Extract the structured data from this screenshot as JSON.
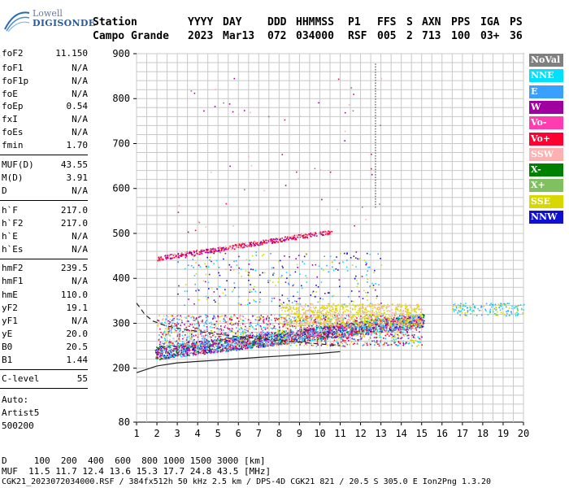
{
  "logo": {
    "line1": "Lowell",
    "line2": "DIGISONDE"
  },
  "header": {
    "labels": [
      "Station",
      "YYYY",
      "DAY",
      "DDD",
      "HHMMSS",
      "P1",
      "FFS",
      "S",
      "AXN",
      "PPS",
      "IGA",
      "PS"
    ],
    "values": [
      "Campo Grande",
      "2023",
      "Mar13",
      "072",
      "034000",
      "RSF",
      "005",
      "2",
      "713",
      "100",
      "03+",
      "36"
    ]
  },
  "params": [
    {
      "k": "foF2",
      "v": "11.150"
    },
    {
      "k": "foF1",
      "v": "N/A"
    },
    {
      "k": "foF1p",
      "v": "N/A"
    },
    {
      "k": "foE",
      "v": "N/A"
    },
    {
      "k": "foEp",
      "v": "0.54"
    },
    {
      "k": "fxI",
      "v": "N/A"
    },
    {
      "k": "foEs",
      "v": "N/A"
    },
    {
      "k": "fmin",
      "v": "1.70"
    },
    {
      "k": "MUF(D)",
      "v": "43.55"
    },
    {
      "k": "M(D)",
      "v": "3.91"
    },
    {
      "k": "D",
      "v": "N/A"
    },
    {
      "k": "h`F",
      "v": "217.0"
    },
    {
      "k": "h`F2",
      "v": "217.0"
    },
    {
      "k": "h`E",
      "v": "N/A"
    },
    {
      "k": "h`Es",
      "v": "N/A"
    },
    {
      "k": "hmF2",
      "v": "239.5"
    },
    {
      "k": "hmF1",
      "v": "N/A"
    },
    {
      "k": "hmE",
      "v": "110.0"
    },
    {
      "k": "yF2",
      "v": "19.1"
    },
    {
      "k": "yF1",
      "v": "N/A"
    },
    {
      "k": "yE",
      "v": "20.0"
    },
    {
      "k": "B0",
      "v": "20.5"
    },
    {
      "k": "B1",
      "v": "1.44"
    },
    {
      "k": "C-level",
      "v": "55"
    }
  ],
  "auto": {
    "line1": "Auto:",
    "line2": "Artist5",
    "line3": "500200"
  },
  "legend": [
    {
      "label": "NoVal",
      "bg": "#808080",
      "fg": "#ffffff"
    },
    {
      "label": "NNE",
      "bg": "#00e0ff",
      "fg": "#ffffff"
    },
    {
      "label": "E",
      "bg": "#3aa0ff",
      "fg": "#ffffff"
    },
    {
      "label": "W",
      "bg": "#a000a0",
      "fg": "#ffffff"
    },
    {
      "label": "Vo-",
      "bg": "#ff3cb0",
      "fg": "#ffffff"
    },
    {
      "label": "Vo+",
      "bg": "#ff0030",
      "fg": "#ffffff"
    },
    {
      "label": "SSW",
      "bg": "#ffb0b0",
      "fg": "#ffffff"
    },
    {
      "label": "X-",
      "bg": "#008000",
      "fg": "#ffffff"
    },
    {
      "label": "X+",
      "bg": "#80c060",
      "fg": "#ffffff"
    },
    {
      "label": "SSE",
      "bg": "#d8d800",
      "fg": "#ffffff"
    },
    {
      "label": "NNW",
      "bg": "#1010d0",
      "fg": "#ffffff"
    }
  ],
  "chart_data": {
    "type": "scatter",
    "xlim": [
      1,
      20
    ],
    "ylim": [
      80,
      900
    ],
    "x_ticks": [
      "1",
      "2",
      "3",
      "4",
      "5",
      "6",
      "7",
      "8",
      "9",
      "10",
      "11",
      "12",
      "13",
      "14",
      "15",
      "16",
      "17",
      "18",
      "19",
      "20"
    ],
    "y_ticks": [
      "80",
      "200",
      "300",
      "400",
      "500",
      "600",
      "700",
      "800",
      "900"
    ],
    "grid": true,
    "profile_line": {
      "x": [
        1.0,
        2.0,
        3.0,
        4.0,
        5.0,
        6.0,
        7.0,
        8.0,
        9.0,
        10.0,
        11.0
      ],
      "y": [
        190,
        205,
        212,
        215,
        218,
        221,
        224,
        227,
        230,
        233,
        237
      ]
    },
    "dashed_curve": {
      "x": [
        1.0,
        1.4,
        1.8,
        2.4,
        3.0,
        4.0,
        5.0,
        6.0,
        7.0,
        8.0,
        9.0,
        10.0,
        11.0
      ],
      "y": [
        345,
        320,
        305,
        295,
        289,
        282,
        276,
        270,
        266,
        262,
        258,
        254,
        250
      ]
    }
  },
  "footer": {
    "d_line": "D     100  200  400  600  800 1000 1500 3000 [km]",
    "muf_line": "MUF  11.5 11.7 12.4 13.6 15.3 17.7 24.8 43.5 [MHz]",
    "info_line": "CGK21_2023072034000.RSF / 384fx512h 50 kHz 2.5 km / DPS-4D CGK21 821 / 20.5 S 305.0 E Ion2Png 1.3.20"
  }
}
